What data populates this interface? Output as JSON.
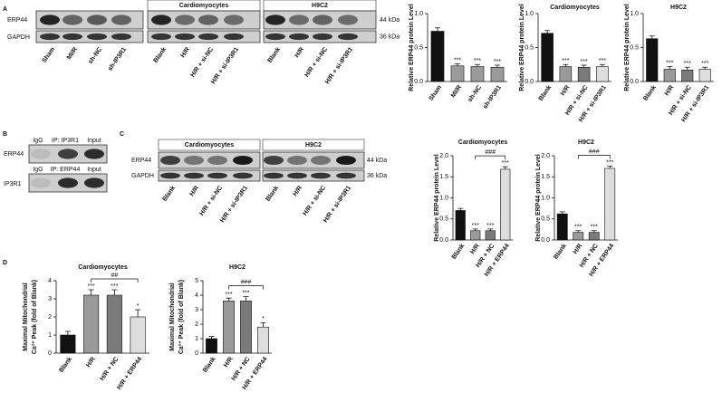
{
  "panel_labels": [
    "A",
    "B",
    "C",
    "D"
  ],
  "blots": {
    "a1": {
      "rows": [
        "ERP44",
        "GAPDH"
      ],
      "lanes": [
        "Sham",
        "MI/R",
        "sh-NC",
        "sh-IP3R1"
      ]
    },
    "a2": {
      "groups": [
        "Cardiomyocytes",
        "H9C2"
      ],
      "kda": [
        "44 kDa",
        "36 kDa"
      ],
      "lanes": [
        "Blank",
        "H/R",
        "H/R + si-NC",
        "H/R + si-IP3R1"
      ]
    },
    "b": {
      "top_headers": [
        "IgG",
        "IP: IP3R1",
        "Input"
      ],
      "top_row": "ERP44",
      "bottom_headers": [
        "IgG",
        "IP: ERP44",
        "Input"
      ],
      "bottom_row": "IP3R1"
    },
    "c": {
      "groups": [
        "Cardiomyocytes",
        "H9C2"
      ],
      "rows": [
        "ERP44",
        "GAPDH"
      ],
      "kda": [
        "44 kDa",
        "36 kDa"
      ],
      "lanes": [
        "Blank",
        "H/R",
        "H/R + si-NC",
        "H/R + si-IP3R1"
      ]
    }
  },
  "chart_data": [
    {
      "type": "bar",
      "ylabel": "Relative ERP44 protein Level",
      "categories": [
        "Sham",
        "MI/R",
        "sh-NC",
        "sh-IP3R1"
      ],
      "values": [
        0.74,
        0.23,
        0.22,
        0.21
      ],
      "errors": [
        0.05,
        0.03,
        0.03,
        0.03
      ],
      "colors": [
        "#111111",
        "#9a9a9a",
        "#9a9a9a",
        "#9a9a9a"
      ],
      "sig_labels": [
        null,
        "***",
        "***",
        "***"
      ],
      "brackets": [],
      "ylim": [
        0,
        1
      ],
      "yticks": [
        {
          "value": 0,
          "label": "0.0"
        },
        0.5,
        {
          "value": 1,
          "label": "1.0"
        }
      ]
    },
    {
      "type": "bar",
      "title": "Cardiomyocytes",
      "ylabel": "Relative ERP44 protein Level",
      "categories": [
        "Blank",
        "H/R",
        "H/R + si-NC",
        "H/R + si-IP3R1"
      ],
      "values": [
        0.71,
        0.22,
        0.21,
        0.22
      ],
      "errors": [
        0.04,
        0.03,
        0.03,
        0.03
      ],
      "colors": [
        "#111111",
        "#9a9a9a",
        "#7a7a7a",
        "#dddddd"
      ],
      "sig_labels": [
        null,
        "***",
        "***",
        "***"
      ],
      "brackets": [],
      "ylim": [
        0,
        1
      ],
      "yticks": [
        {
          "value": 0,
          "label": "0.0"
        },
        0.5,
        {
          "value": 1,
          "label": "1.0"
        }
      ]
    },
    {
      "type": "bar",
      "title": "H9C2",
      "ylabel": "Relative ERP44 protein Level",
      "categories": [
        "Blank",
        "H/R",
        "H/R + si-NC",
        "H/R + si-IP3R1"
      ],
      "values": [
        0.63,
        0.18,
        0.17,
        0.18
      ],
      "errors": [
        0.04,
        0.04,
        0.04,
        0.03
      ],
      "colors": [
        "#111111",
        "#9a9a9a",
        "#7a7a7a",
        "#dddddd"
      ],
      "sig_labels": [
        null,
        "***",
        "***",
        "***"
      ],
      "brackets": [],
      "ylim": [
        0,
        1
      ],
      "yticks": [
        {
          "value": 0,
          "label": "0.0"
        },
        0.5,
        {
          "value": 1,
          "label": "1.0"
        }
      ]
    },
    {
      "type": "bar",
      "title": "Cardiomyocytes",
      "ylabel": "Relative ERP44 protein Level",
      "categories": [
        "Blank",
        "H/R",
        "H/R + NC",
        "H/R + ERP44"
      ],
      "values": [
        0.7,
        0.22,
        0.22,
        1.68
      ],
      "errors": [
        0.05,
        0.04,
        0.04,
        0.06
      ],
      "colors": [
        "#111111",
        "#9a9a9a",
        "#7a7a7a",
        "#dddddd"
      ],
      "sig_labels": [
        null,
        "***",
        "***",
        "***"
      ],
      "brackets": [
        {
          "text": "###",
          "from": 1,
          "to": 3
        }
      ],
      "ylim": [
        0,
        2
      ],
      "yticks": [
        {
          "value": 0,
          "label": "0.0"
        },
        0.5,
        {
          "value": 1,
          "label": "1.0"
        },
        1.5,
        {
          "value": 2,
          "label": "2.0"
        }
      ]
    },
    {
      "type": "bar",
      "title": "H9C2",
      "ylabel": "Relative ERP44 protein Level",
      "categories": [
        "Blank",
        "H/R",
        "H/R + NC",
        "H/R + ERP44"
      ],
      "values": [
        0.62,
        0.18,
        0.18,
        1.7
      ],
      "errors": [
        0.05,
        0.04,
        0.04,
        0.05
      ],
      "colors": [
        "#111111",
        "#9a9a9a",
        "#7a7a7a",
        "#dddddd"
      ],
      "sig_labels": [
        null,
        "***",
        "***",
        "***"
      ],
      "brackets": [
        {
          "text": "###",
          "from": 1,
          "to": 3
        }
      ],
      "ylim": [
        0,
        2
      ],
      "yticks": [
        {
          "value": 0,
          "label": "0.0"
        },
        0.5,
        {
          "value": 1,
          "label": "1.0"
        },
        1.5,
        {
          "value": 2,
          "label": "2.0"
        }
      ]
    },
    {
      "type": "bar",
      "title": "Cardiomyocytes",
      "ylabel": [
        "Maximal Mitochondrial",
        "Ca²⁺ Peak (fold of Blank)"
      ],
      "categories": [
        "Blank",
        "H/R",
        "H/R + NC",
        "H/R + ERP44"
      ],
      "values": [
        1.0,
        3.2,
        3.2,
        2.0
      ],
      "errors": [
        0.2,
        0.3,
        0.3,
        0.4
      ],
      "colors": [
        "#111111",
        "#9a9a9a",
        "#7a7a7a",
        "#dddddd"
      ],
      "sig_labels": [
        null,
        "***",
        "***",
        "*"
      ],
      "brackets": [
        {
          "text": "##",
          "from": 1,
          "to": 3
        }
      ],
      "ylim": [
        0,
        4
      ],
      "yticks": [
        0,
        1,
        2,
        3,
        4
      ]
    },
    {
      "type": "bar",
      "title": "H9C2",
      "ylabel": [
        "Maximal Mitochondrial",
        "Ca²⁺ Peak (fold of Blank)"
      ],
      "categories": [
        "Blank",
        "H/R",
        "H/R + NC",
        "H/R + ERP44"
      ],
      "values": [
        1.0,
        3.6,
        3.6,
        1.8
      ],
      "errors": [
        0.15,
        0.2,
        0.3,
        0.3
      ],
      "colors": [
        "#111111",
        "#9a9a9a",
        "#7a7a7a",
        "#dddddd"
      ],
      "sig_labels": [
        null,
        "***",
        "***",
        "*"
      ],
      "brackets": [
        {
          "text": "###",
          "from": 1,
          "to": 3
        }
      ],
      "ylim": [
        0,
        5
      ],
      "yticks": [
        0,
        1,
        2,
        3,
        4,
        5
      ]
    }
  ]
}
